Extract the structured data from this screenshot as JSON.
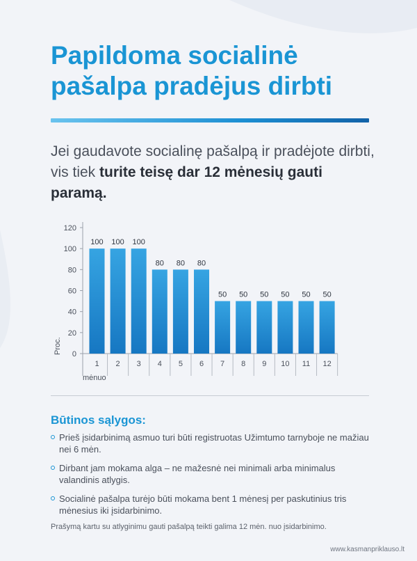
{
  "title_lines": [
    "Papildoma socialinė",
    "pašalpa pradėjus dirbti"
  ],
  "intro": {
    "regular": "Jei gaudavote socialinę pašalpą ir pradėjote dirbti, vis tiek ",
    "bold": "turite teisę dar 12 mėnesių gauti paramą."
  },
  "chart_data": {
    "type": "bar",
    "title": "",
    "xlabel": "mėnuo",
    "ylabel": "Proc.",
    "ylim": [
      0,
      120
    ],
    "yticks": [
      0,
      20,
      40,
      60,
      80,
      100,
      120
    ],
    "categories": [
      "1",
      "2",
      "3",
      "4",
      "5",
      "6",
      "7",
      "8",
      "9",
      "10",
      "11",
      "12"
    ],
    "values": [
      100,
      100,
      100,
      80,
      80,
      80,
      50,
      50,
      50,
      50,
      50,
      50
    ],
    "bar_color_top": "#36a4e2",
    "bar_color_bottom": "#1677c2",
    "grid": false
  },
  "conditions": {
    "title": "Būtinos sąlygos:",
    "items": [
      "Prieš įsidarbinimą asmuo turi būti registruotas Užimtumo tarnyboje ne mažiau nei 6 mėn.",
      "Dirbant jam mokama alga – ne mažesnė nei minimali arba minimalus valandinis atlygis.",
      "Socialinė pašalpa turėjo būti mokama bent 1 mėnesį per paskutinius tris mėnesius iki įsidarbinimo."
    ]
  },
  "footnote": "Prašymą kartu su atlyginimu gauti pašalpą teikti galima 12 mėn. nuo įsidarbinimo.",
  "website": "www.kasmanpriklauso.lt",
  "colors": {
    "accent": "#1a95d4",
    "background": "#f2f4f8",
    "text": "#4a505b"
  }
}
